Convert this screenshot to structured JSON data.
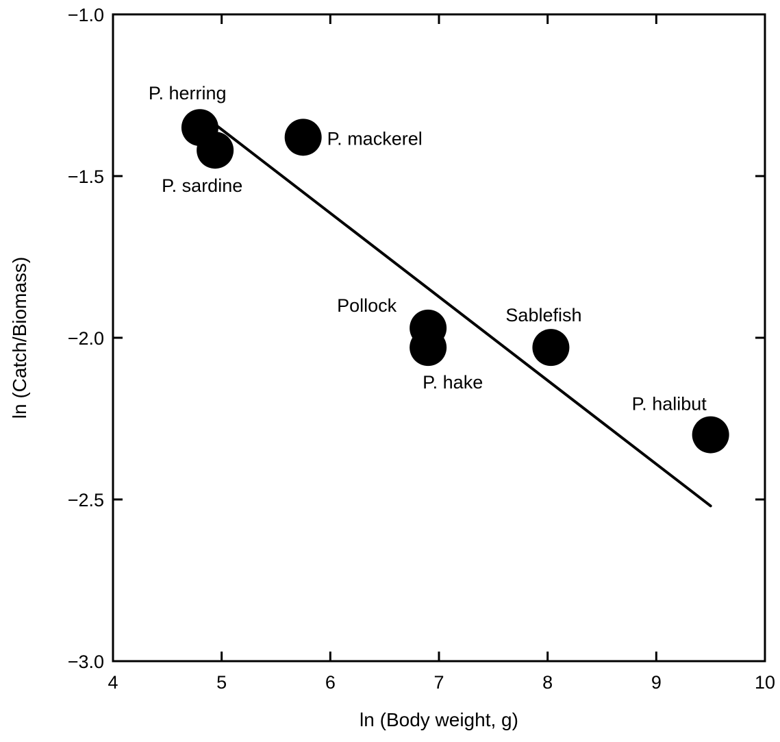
{
  "chart_data": {
    "type": "scatter",
    "title": "",
    "xlabel": "ln (Body weight, g)",
    "ylabel": "ln (Catch/Biomass)",
    "xlim": [
      4,
      10
    ],
    "ylim": [
      -3.0,
      -1.0
    ],
    "x_ticks": [
      4,
      5,
      6,
      7,
      8,
      9,
      10
    ],
    "y_ticks": [
      -3.0,
      -2.5,
      -2.0,
      -1.5,
      -1.0
    ],
    "x_tick_labels": [
      "4",
      "5",
      "6",
      "7",
      "8",
      "9",
      "10"
    ],
    "y_tick_labels": [
      "−3.0",
      "−2.5",
      "−2.0",
      "−1.5",
      "−1.0"
    ],
    "grid": false,
    "points": [
      {
        "label": "P. herring",
        "x": 4.8,
        "y": -1.35
      },
      {
        "label": "P. sardine",
        "x": 4.94,
        "y": -1.42
      },
      {
        "label": "P. mackerel",
        "x": 5.75,
        "y": -1.38
      },
      {
        "label": "Pollock",
        "x": 6.9,
        "y": -1.97
      },
      {
        "label": "P. hake",
        "x": 6.9,
        "y": -2.03
      },
      {
        "label": "Sablefish",
        "x": 8.03,
        "y": -2.03
      },
      {
        "label": "P. halibut",
        "x": 9.5,
        "y": -2.3
      }
    ],
    "fit_line": {
      "x": [
        4.9,
        9.5
      ],
      "y": [
        -1.33,
        -2.52
      ]
    }
  }
}
